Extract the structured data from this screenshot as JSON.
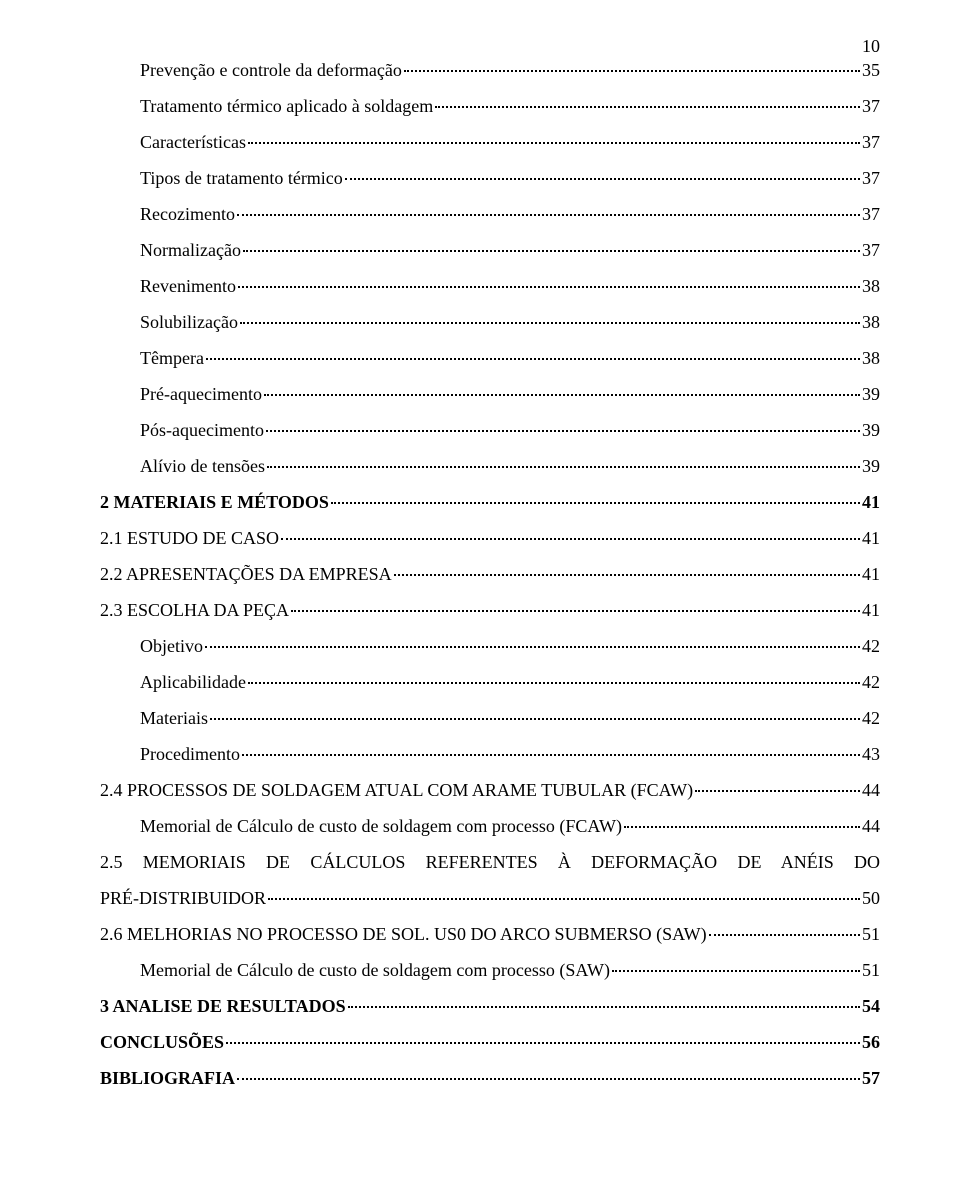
{
  "page_number": "10",
  "entries": [
    {
      "label": "Prevenção e controle da deformação",
      "page": "35",
      "indent": 1,
      "bold": false
    },
    {
      "label": "Tratamento térmico aplicado à soldagem",
      "page": "37",
      "indent": 1,
      "bold": false,
      "spaced": true
    },
    {
      "label": "Características",
      "page": "37",
      "indent": 1,
      "bold": false,
      "spaced": true
    },
    {
      "label": "Tipos de tratamento térmico",
      "page": "37",
      "indent": 1,
      "bold": false,
      "spaced": true
    },
    {
      "label": "Recozimento",
      "page": "37",
      "indent": 1,
      "bold": false,
      "spaced": true
    },
    {
      "label": "Normalização",
      "page": "37",
      "indent": 1,
      "bold": false,
      "spaced": true
    },
    {
      "label": "Revenimento",
      "page": "38",
      "indent": 1,
      "bold": false,
      "spaced": true
    },
    {
      "label": "Solubilização",
      "page": "38",
      "indent": 1,
      "bold": false,
      "spaced": true
    },
    {
      "label": "Têmpera",
      "page": "38",
      "indent": 1,
      "bold": false,
      "spaced": true
    },
    {
      "label": "Pré-aquecimento",
      "page": "39",
      "indent": 1,
      "bold": false,
      "spaced": true
    },
    {
      "label": "Pós-aquecimento",
      "page": "39",
      "indent": 1,
      "bold": false,
      "spaced": true
    },
    {
      "label": "Alívio de tensões",
      "page": "39",
      "indent": 1,
      "bold": false,
      "spaced": true
    },
    {
      "label": "2 MATERIAIS E MÉTODOS",
      "page": "41",
      "indent": 0,
      "bold": true
    },
    {
      "label": "2.1 ESTUDO DE CASO",
      "page": "41",
      "indent": 0,
      "bold": false,
      "spaced": true
    },
    {
      "label": "2.2 APRESENTAÇÕES DA EMPRESA",
      "page": "41",
      "indent": 0,
      "bold": false
    },
    {
      "label": "2.3 ESCOLHA DA PEÇA",
      "page": "41",
      "indent": 0,
      "bold": false
    },
    {
      "label": "Objetivo",
      "page": "42",
      "indent": 1,
      "bold": false,
      "spaced": true
    },
    {
      "label": "Aplicabilidade",
      "page": "42",
      "indent": 1,
      "bold": false,
      "spaced": true
    },
    {
      "label": "Materiais",
      "page": "42",
      "indent": 1,
      "bold": false,
      "spaced": true
    },
    {
      "label": "Procedimento",
      "page": "43",
      "indent": 1,
      "bold": false,
      "spaced": true
    },
    {
      "label": "2.4 PROCESSOS DE SOLDAGEM ATUAL COM ARAME TUBULAR (FCAW)",
      "page": "44",
      "indent": 0,
      "bold": false
    },
    {
      "label": "Memorial de Cálculo de custo de soldagem com processo (FCAW)",
      "page": "44",
      "indent": 1,
      "bold": false,
      "spaced": true
    },
    {
      "label": "2.5 MEMORIAIS DE CÁLCULOS REFERENTES À DEFORMAÇÃO DE ANÉIS DO PRÉ-DISTRIBUIDOR",
      "page": "50",
      "indent": 0,
      "bold": false,
      "multiline": true,
      "spaced": true
    },
    {
      "label": "2.6 MELHORIAS NO PROCESSO DE SOL. US0 DO ARCO SUBMERSO (SAW)",
      "page": "51",
      "indent": 0,
      "bold": false
    },
    {
      "label": "Memorial de Cálculo de custo de soldagem com processo (SAW)",
      "page": "51",
      "indent": 1,
      "bold": false,
      "spaced": true
    },
    {
      "label": "3 ANALISE DE RESULTADOS",
      "page": "54",
      "indent": 0,
      "bold": true
    },
    {
      "label": "CONCLUSÕES",
      "page": "56",
      "indent": 0,
      "bold": true,
      "spaced": true
    },
    {
      "label": "BIBLIOGRAFIA",
      "page": "57",
      "indent": 0,
      "bold": true
    }
  ],
  "multiline_split": {
    "22": {
      "first": "2.5 MEMORIAIS DE CÁLCULOS REFERENTES À DEFORMAÇÃO DE ANÉIS DO",
      "second": "PRÉ-DISTRIBUIDOR"
    }
  },
  "colors": {
    "text": "#000000",
    "bg": "#ffffff"
  },
  "font": {
    "family": "Times New Roman",
    "size_pt": 13
  }
}
